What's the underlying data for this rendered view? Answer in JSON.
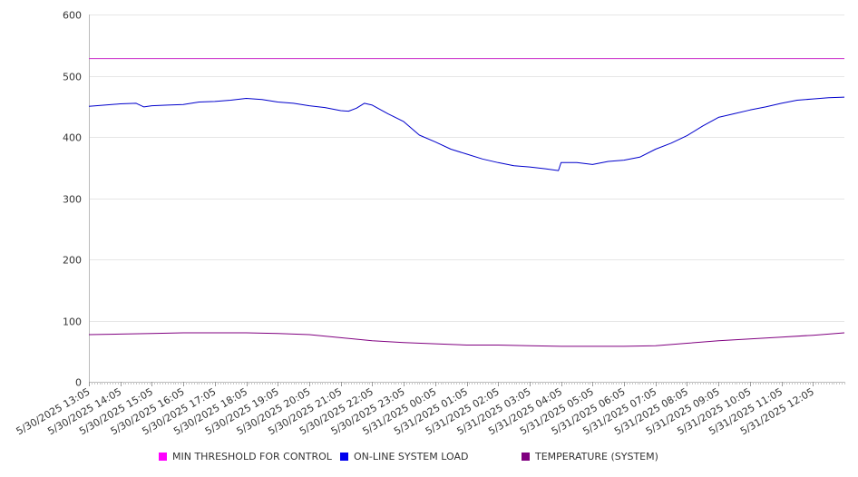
{
  "chart_data": {
    "type": "line",
    "title": "",
    "xlabel": "",
    "ylabel": "",
    "ylim": [
      0,
      600
    ],
    "yticks": [
      0,
      100,
      200,
      300,
      400,
      500,
      600
    ],
    "grid": true,
    "legend_position": "bottom",
    "x_range": [
      "5/30/2025 13:05",
      "5/31/2025 13:05"
    ],
    "xtick_labels": [
      "5/30/2025 13:05",
      "5/30/2025 14:05",
      "5/30/2025 15:05",
      "5/30/2025 16:05",
      "5/30/2025 17:05",
      "5/30/2025 18:05",
      "5/30/2025 19:05",
      "5/30/2025 20:05",
      "5/30/2025 21:05",
      "5/30/2025 22:05",
      "5/30/2025 23:05",
      "5/31/2025 00:05",
      "5/31/2025 01:05",
      "5/31/2025 02:05",
      "5/31/2025 03:05",
      "5/31/2025 04:05",
      "5/31/2025 05:05",
      "5/31/2025 06:05",
      "5/31/2025 07:05",
      "5/31/2025 08:05",
      "5/31/2025 09:05",
      "5/31/2025 10:05",
      "5/31/2025 11:05",
      "5/31/2025 12:05"
    ],
    "series": [
      {
        "name": "MIN THRESHOLD FOR CONTROL",
        "color": "#cc33cc",
        "points": [
          [
            "5/30/2025 13:05",
            528
          ],
          [
            "5/31/2025 13:05",
            528
          ]
        ]
      },
      {
        "name": "ON-LINE SYSTEM LOAD",
        "color": "#0000cc",
        "points": [
          [
            "5/30/2025 13:05",
            450
          ],
          [
            "5/30/2025 13:35",
            452
          ],
          [
            "5/30/2025 14:05",
            454
          ],
          [
            "5/30/2025 14:35",
            455
          ],
          [
            "5/30/2025 14:50",
            449
          ],
          [
            "5/30/2025 15:05",
            451
          ],
          [
            "5/30/2025 15:35",
            452
          ],
          [
            "5/30/2025 16:05",
            453
          ],
          [
            "5/30/2025 16:35",
            457
          ],
          [
            "5/30/2025 17:05",
            458
          ],
          [
            "5/30/2025 17:35",
            460
          ],
          [
            "5/30/2025 18:05",
            463
          ],
          [
            "5/30/2025 18:35",
            461
          ],
          [
            "5/30/2025 19:05",
            457
          ],
          [
            "5/30/2025 19:35",
            455
          ],
          [
            "5/30/2025 20:05",
            451
          ],
          [
            "5/30/2025 20:35",
            448
          ],
          [
            "5/30/2025 21:05",
            443
          ],
          [
            "5/30/2025 21:20",
            442
          ],
          [
            "5/30/2025 21:35",
            447
          ],
          [
            "5/30/2025 21:50",
            455
          ],
          [
            "5/30/2025 22:05",
            452
          ],
          [
            "5/30/2025 22:35",
            438
          ],
          [
            "5/30/2025 23:05",
            425
          ],
          [
            "5/30/2025 23:35",
            403
          ],
          [
            "5/31/2025 00:05",
            392
          ],
          [
            "5/31/2025 00:35",
            380
          ],
          [
            "5/31/2025 01:05",
            372
          ],
          [
            "5/31/2025 01:35",
            364
          ],
          [
            "5/31/2025 02:05",
            358
          ],
          [
            "5/31/2025 02:35",
            353
          ],
          [
            "5/31/2025 03:05",
            351
          ],
          [
            "5/31/2025 03:35",
            348
          ],
          [
            "5/31/2025 04:00",
            345
          ],
          [
            "5/31/2025 04:05",
            358
          ],
          [
            "5/31/2025 04:35",
            358
          ],
          [
            "5/31/2025 05:05",
            355
          ],
          [
            "5/31/2025 05:35",
            360
          ],
          [
            "5/31/2025 06:05",
            362
          ],
          [
            "5/31/2025 06:35",
            367
          ],
          [
            "5/31/2025 07:05",
            380
          ],
          [
            "5/31/2025 07:35",
            390
          ],
          [
            "5/31/2025 08:05",
            402
          ],
          [
            "5/31/2025 08:35",
            418
          ],
          [
            "5/31/2025 09:05",
            432
          ],
          [
            "5/31/2025 09:35",
            438
          ],
          [
            "5/31/2025 10:05",
            444
          ],
          [
            "5/31/2025 10:35",
            449
          ],
          [
            "5/31/2025 11:05",
            455
          ],
          [
            "5/31/2025 11:35",
            460
          ],
          [
            "5/31/2025 12:05",
            462
          ],
          [
            "5/31/2025 12:35",
            464
          ],
          [
            "5/31/2025 13:05",
            465
          ]
        ]
      },
      {
        "name": "TEMPERATURE (SYSTEM)",
        "color": "#800080",
        "points": [
          [
            "5/30/2025 13:05",
            77
          ],
          [
            "5/30/2025 14:05",
            78
          ],
          [
            "5/30/2025 15:05",
            79
          ],
          [
            "5/30/2025 16:05",
            80
          ],
          [
            "5/30/2025 17:05",
            80
          ],
          [
            "5/30/2025 18:05",
            80
          ],
          [
            "5/30/2025 19:05",
            79
          ],
          [
            "5/30/2025 20:05",
            77
          ],
          [
            "5/30/2025 21:05",
            72
          ],
          [
            "5/30/2025 22:05",
            67
          ],
          [
            "5/30/2025 23:05",
            64
          ],
          [
            "5/31/2025 00:05",
            62
          ],
          [
            "5/31/2025 01:05",
            60
          ],
          [
            "5/31/2025 02:05",
            60
          ],
          [
            "5/31/2025 03:05",
            59
          ],
          [
            "5/31/2025 04:05",
            58
          ],
          [
            "5/31/2025 05:05",
            58
          ],
          [
            "5/31/2025 06:05",
            58
          ],
          [
            "5/31/2025 07:05",
            59
          ],
          [
            "5/31/2025 08:05",
            63
          ],
          [
            "5/31/2025 09:05",
            67
          ],
          [
            "5/31/2025 10:05",
            70
          ],
          [
            "5/31/2025 11:05",
            73
          ],
          [
            "5/31/2025 12:05",
            76
          ],
          [
            "5/31/2025 13:05",
            80
          ]
        ]
      }
    ]
  }
}
